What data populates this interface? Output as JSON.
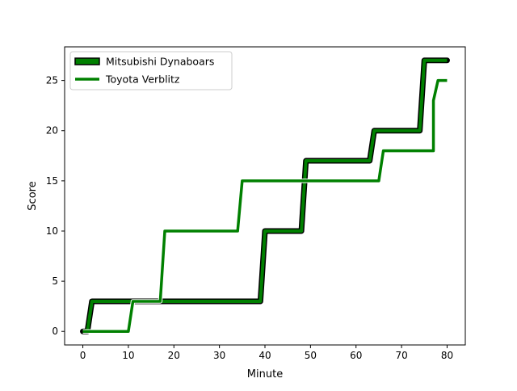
{
  "chart_data": {
    "type": "line",
    "title": "",
    "xlabel": "Minute",
    "ylabel": "Score",
    "xlim": [
      -4,
      84
    ],
    "ylim": [
      -1.35,
      28.35
    ],
    "xticks": [
      0,
      10,
      20,
      30,
      40,
      50,
      60,
      70,
      80
    ],
    "yticks": [
      0,
      5,
      10,
      15,
      20,
      25
    ],
    "grid": false,
    "legend_position": "top-left",
    "series": [
      {
        "name": "Mitsubishi Dynaboars",
        "color": "#008000",
        "outline": "#000000",
        "style": "outlined",
        "points": [
          [
            0,
            0
          ],
          [
            1,
            0
          ],
          [
            2,
            3
          ],
          [
            39,
            3
          ],
          [
            40,
            10
          ],
          [
            48,
            10
          ],
          [
            49,
            17
          ],
          [
            63,
            17
          ],
          [
            64,
            20
          ],
          [
            74,
            20
          ],
          [
            75,
            27
          ],
          [
            80,
            27
          ]
        ]
      },
      {
        "name": "Toyota Verblitz",
        "color": "#008000",
        "style": "plain",
        "points": [
          [
            0,
            0
          ],
          [
            10,
            0
          ],
          [
            11,
            3
          ],
          [
            17,
            3
          ],
          [
            18,
            10
          ],
          [
            34,
            10
          ],
          [
            35,
            15
          ],
          [
            65,
            15
          ],
          [
            66,
            18
          ],
          [
            77,
            18
          ],
          [
            77,
            23
          ],
          [
            78,
            25
          ],
          [
            80,
            25
          ]
        ]
      }
    ]
  }
}
